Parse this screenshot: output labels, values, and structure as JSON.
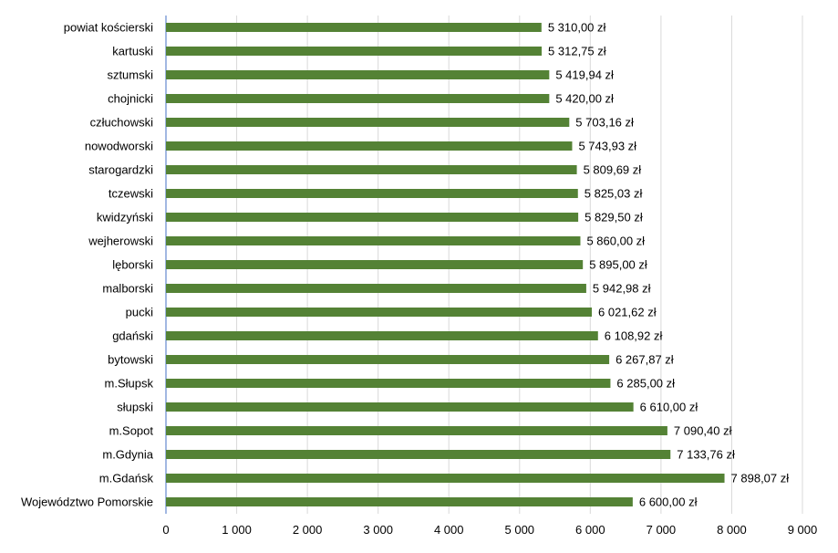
{
  "chart_data": {
    "type": "bar",
    "orientation": "horizontal",
    "categories": [
      "powiat kościerski",
      "kartuski",
      "sztumski",
      "chojnicki",
      "człuchowski",
      "nowodworski",
      "starogardzki",
      "tczewski",
      "kwidzyński",
      "wejherowski",
      "lęborski",
      "malborski",
      "pucki",
      "gdański",
      "bytowski",
      "m.Słupsk",
      "słupski",
      "m.Sopot",
      "m.Gdynia",
      "m.Gdańsk",
      "Województwo Pomorskie"
    ],
    "values": [
      5310.0,
      5312.75,
      5419.94,
      5420.0,
      5703.16,
      5743.93,
      5809.69,
      5825.03,
      5829.5,
      5860.0,
      5895.0,
      5942.98,
      6021.62,
      6108.92,
      6267.87,
      6285.0,
      6610.0,
      7090.4,
      7133.76,
      7898.07,
      6600.0
    ],
    "data_labels": [
      "5 310,00 zł",
      "5 312,75 zł",
      "5 419,94 zł",
      "5 420,00 zł",
      "5 703,16 zł",
      "5 743,93 zł",
      "5 809,69 zł",
      "5 825,03 zł",
      "5 829,50 zł",
      "5 860,00 zł",
      "5 895,00 zł",
      "5 942,98 zł",
      "6 021,62 zł",
      "6 108,92 zł",
      "6 267,87 zł",
      "6 285,00 zł",
      "6 610,00 zł",
      "7 090,40 zł",
      "7 133,76 zł",
      "7 898,07 zł",
      "6 600,00 zł"
    ],
    "xlim": [
      0,
      9000
    ],
    "xticks": [
      0,
      1000,
      2000,
      3000,
      4000,
      5000,
      6000,
      7000,
      8000,
      9000
    ],
    "xtick_labels": [
      "0",
      "1 000",
      "2 000",
      "3 000",
      "4 000",
      "5 000",
      "6 000",
      "7 000",
      "8 000",
      "9 000"
    ],
    "title": "",
    "xlabel": "",
    "ylabel": "",
    "grid": true,
    "legend": "none",
    "colors": {
      "bar": "#548235",
      "grid": "#d9d9d9",
      "axis": "#4472c4",
      "text": "#000000"
    }
  }
}
